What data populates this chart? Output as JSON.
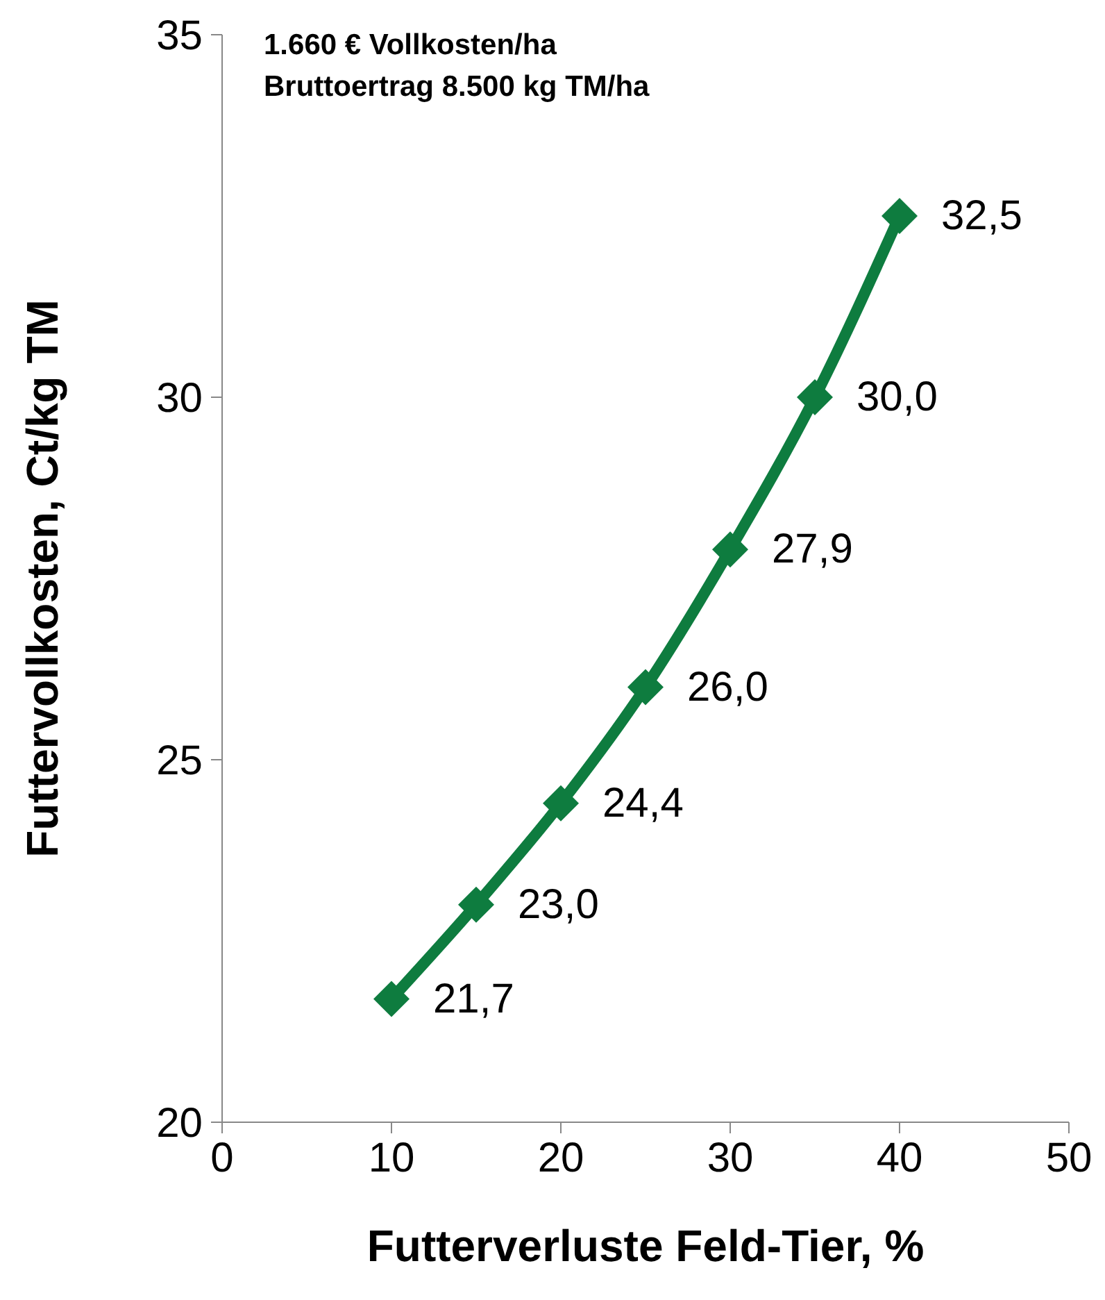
{
  "chart_data": {
    "type": "line",
    "xlabel": "Futterverluste Feld-Tier, %",
    "ylabel": "Futtervollkosten, Ct/kg TM",
    "annotations": [
      "1.660 € Vollkosten/ha",
      "Bruttoertrag 8.500 kg TM/ha"
    ],
    "x": [
      10,
      15,
      20,
      25,
      30,
      35,
      40
    ],
    "series": [
      {
        "color": "#0e7c3f",
        "values": [
          21.7,
          23.0,
          24.4,
          26.0,
          27.9,
          30.0,
          32.5
        ],
        "value_labels": [
          "21,7",
          "23,0",
          "24,4",
          "26,0",
          "27,9",
          "30,0",
          "32,5"
        ]
      }
    ],
    "xlim": [
      0,
      50
    ],
    "xticks": [
      0,
      10,
      20,
      30,
      40,
      50
    ],
    "ylim": [
      20,
      35
    ],
    "yticks": [
      20,
      25,
      30,
      35
    ],
    "grid": false,
    "marker": "diamond",
    "line_style": "solid"
  }
}
